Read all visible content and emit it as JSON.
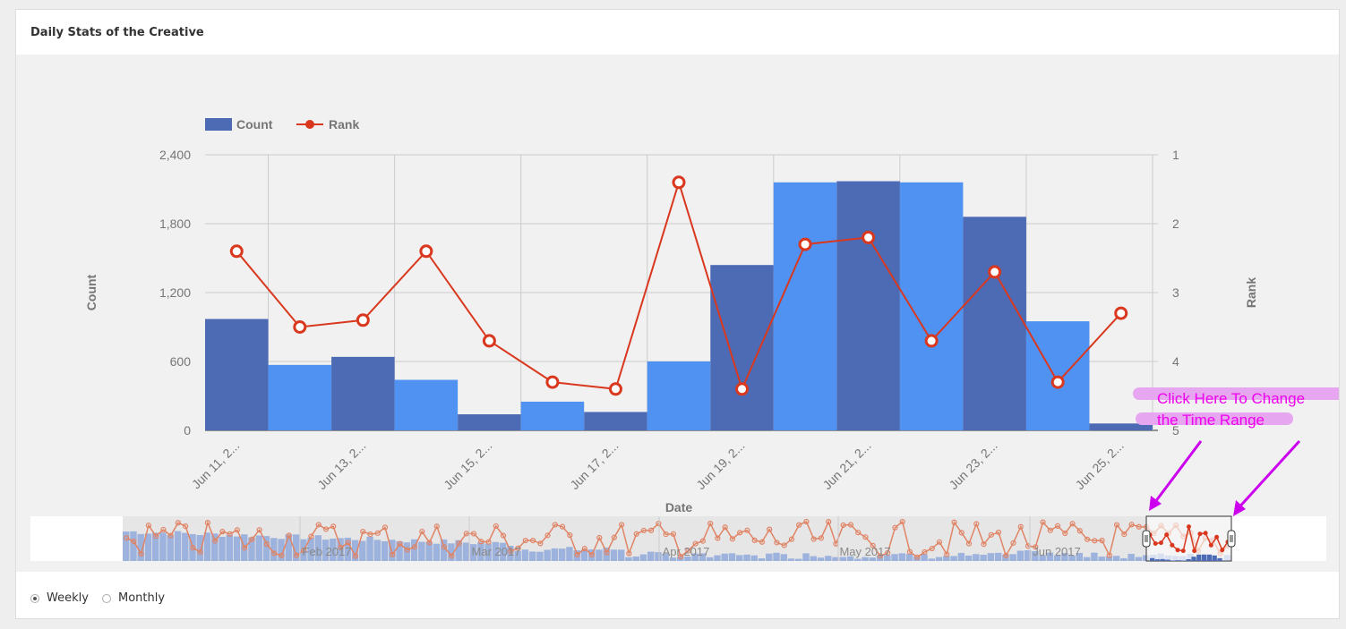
{
  "card": {
    "title": "Daily Stats of the Creative"
  },
  "footer": {
    "options": [
      {
        "label": "Weekly",
        "selected": true
      },
      {
        "label": "Monthly",
        "selected": false
      }
    ]
  },
  "annotation": {
    "line1": "Click Here To Change",
    "line2": "the Time Range",
    "color": "#ee00ee"
  },
  "colors": {
    "count_dark": "#4c6bb4",
    "count_light": "#5092f2",
    "rank": "#d9381e",
    "highlight": "#e6a6f0"
  },
  "chart_data": {
    "type": "bar",
    "xlabel": "Date",
    "categories": [
      "Jun 11, 2...",
      "",
      "Jun 13, 2...",
      "",
      "Jun 15, 2...",
      "",
      "Jun 17, 2...",
      "",
      "Jun 19, 2...",
      "",
      "Jun 21, 2...",
      "",
      "Jun 23, 2...",
      "",
      "Jun 25, 2..."
    ],
    "series": [
      {
        "name": "Count",
        "type": "bar",
        "axis": "left",
        "values": [
          970,
          570,
          640,
          440,
          140,
          250,
          160,
          600,
          1440,
          2160,
          2170,
          2160,
          1860,
          950,
          60
        ]
      },
      {
        "name": "Rank",
        "type": "line",
        "axis": "right",
        "values": [
          2.4,
          3.5,
          3.4,
          2.4,
          3.7,
          4.3,
          4.4,
          1.4,
          4.4,
          2.3,
          2.2,
          3.7,
          2.7,
          4.3,
          3.3
        ]
      }
    ],
    "y_left": {
      "label": "Count",
      "ylim": [
        0,
        2400
      ],
      "ticks": [
        "2,400",
        "1,800",
        "1,200",
        "600",
        "0"
      ]
    },
    "y_right": {
      "label": "Rank",
      "ylim": [
        1,
        5
      ],
      "reversed": true,
      "ticks": [
        "1",
        "2",
        "3",
        "4",
        "5"
      ]
    },
    "legend": {
      "position": "top-left"
    },
    "grid": true,
    "navigator": {
      "labels": [
        "Feb 2017",
        "Mar 2017",
        "Apr 2017",
        "May 2017",
        "Jun 2017"
      ]
    }
  }
}
